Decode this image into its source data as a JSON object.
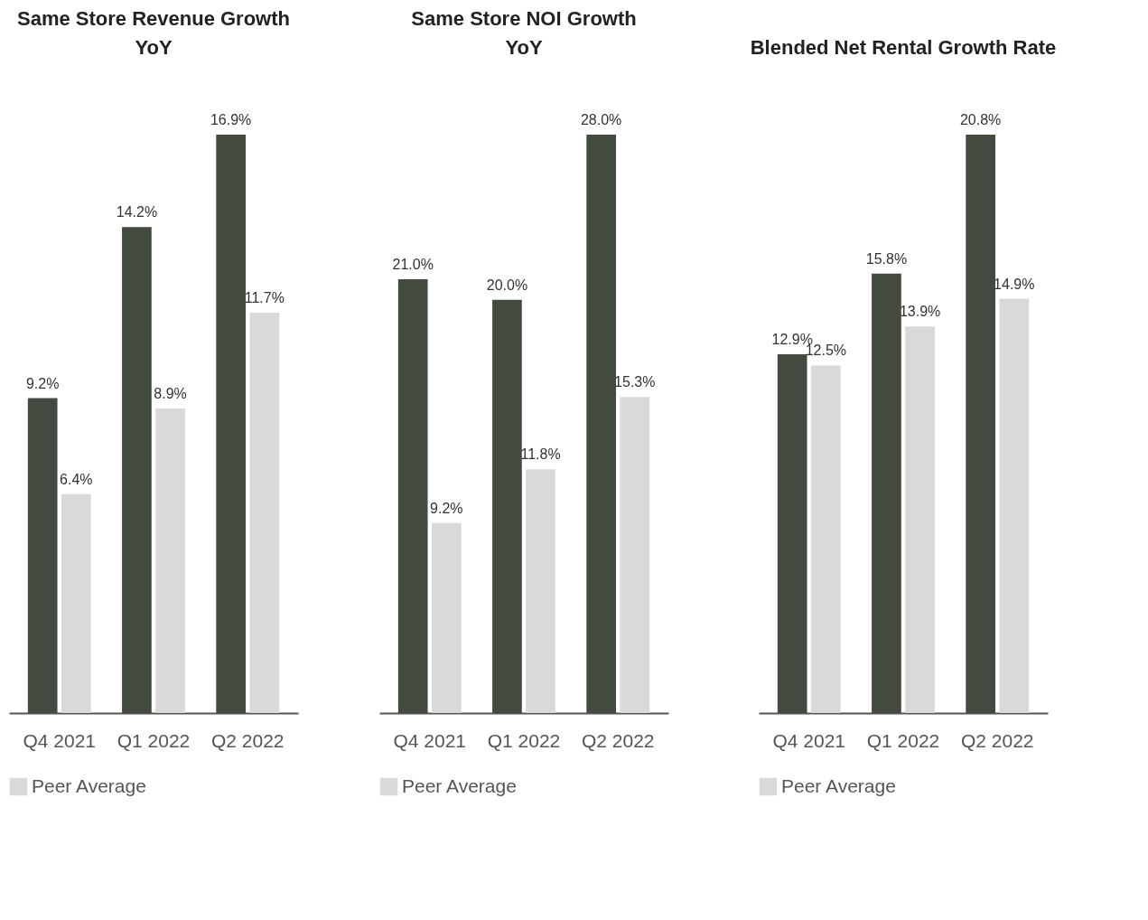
{
  "chart_data": [
    {
      "type": "bar",
      "title": "Same Store Revenue Growth\nYoY",
      "categories": [
        "Q4 2021",
        "Q1 2022",
        "Q2 2022"
      ],
      "series": [
        {
          "color": "#434a3f",
          "values": [
            9.2,
            14.2,
            16.9
          ],
          "value_labels": [
            "9.2%",
            "14.2%",
            "16.9%"
          ]
        },
        {
          "name": "Peer Average",
          "color": "#d9d9d9",
          "values": [
            6.4,
            8.9,
            11.7
          ],
          "value_labels": [
            "6.4%",
            "8.9%",
            "11.7%"
          ]
        }
      ],
      "tick_labels": "x",
      "legend": "bottom"
    },
    {
      "type": "bar",
      "title": "Same Store NOI Growth\nYoY",
      "categories": [
        "Q4 2021",
        "Q1 2022",
        "Q2 2022"
      ],
      "series": [
        {
          "color": "#434a3f",
          "values": [
            21.0,
            20.0,
            28.0
          ],
          "value_labels": [
            "21.0%",
            "20.0%",
            "28.0%"
          ]
        },
        {
          "name": "Peer Average",
          "color": "#d9d9d9",
          "values": [
            9.2,
            11.8,
            15.3
          ],
          "value_labels": [
            "9.2%",
            "11.8%",
            "15.3%"
          ]
        }
      ],
      "tick_labels": "x",
      "legend": "bottom"
    },
    {
      "type": "bar",
      "title": "Blended Net Rental Growth Rate",
      "categories": [
        "Q4 2021",
        "Q1 2022",
        "Q2 2022"
      ],
      "series": [
        {
          "color": "#434a3f",
          "values": [
            12.9,
            15.8,
            20.8
          ],
          "value_labels": [
            "12.9%",
            "15.8%",
            "20.8%"
          ]
        },
        {
          "name": "Peer Average",
          "color": "#d9d9d9",
          "values": [
            12.5,
            13.9,
            14.9
          ],
          "value_labels": [
            "12.5%",
            "13.9%",
            "14.9%"
          ]
        }
      ],
      "tick_labels": "x",
      "legend": "bottom"
    }
  ]
}
